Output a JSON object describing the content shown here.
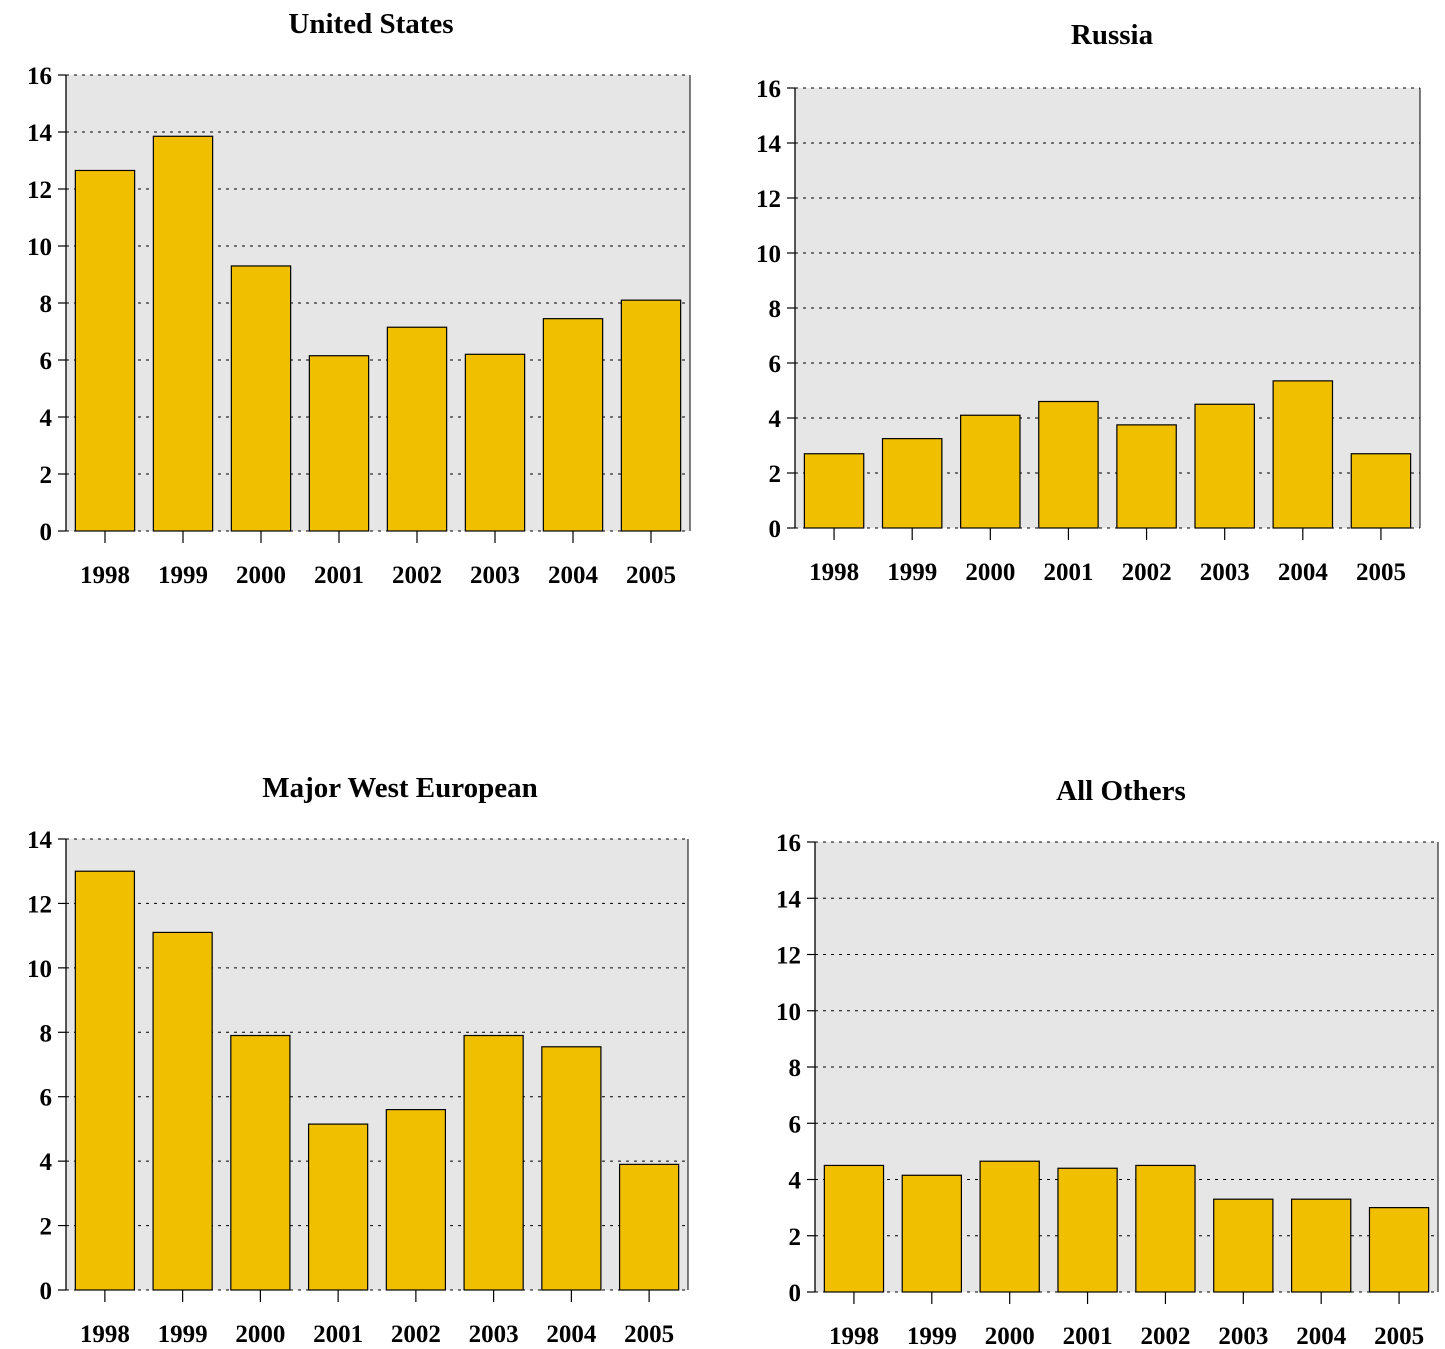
{
  "colors": {
    "bar": "#f0c000",
    "plot_background": "#e6e6e6"
  },
  "chart_data": [
    {
      "type": "bar",
      "title": "United States",
      "categories": [
        "1998",
        "1999",
        "2000",
        "2001",
        "2002",
        "2003",
        "2004",
        "2005"
      ],
      "values": [
        12.65,
        13.85,
        9.3,
        6.15,
        7.15,
        6.2,
        7.45,
        8.1
      ],
      "ylim": [
        0,
        16
      ],
      "yticks": [
        0,
        2,
        4,
        6,
        8,
        10,
        12,
        14,
        16
      ],
      "grid": true
    },
    {
      "type": "bar",
      "title": "Russia",
      "categories": [
        "1998",
        "1999",
        "2000",
        "2001",
        "2002",
        "2003",
        "2004",
        "2005"
      ],
      "values": [
        2.7,
        3.25,
        4.1,
        4.6,
        3.75,
        4.5,
        5.35,
        2.7
      ],
      "ylim": [
        0,
        16
      ],
      "yticks": [
        0,
        2,
        4,
        6,
        8,
        10,
        12,
        14,
        16
      ],
      "grid": true
    },
    {
      "type": "bar",
      "title": "Major West European",
      "categories": [
        "1998",
        "1999",
        "2000",
        "2001",
        "2002",
        "2003",
        "2004",
        "2005"
      ],
      "values": [
        13.0,
        11.1,
        7.9,
        5.15,
        5.6,
        7.9,
        7.55,
        3.9
      ],
      "ylim": [
        0,
        14
      ],
      "yticks": [
        0,
        2,
        4,
        6,
        8,
        10,
        12,
        14
      ],
      "grid": true
    },
    {
      "type": "bar",
      "title": "All Others",
      "categories": [
        "1998",
        "1999",
        "2000",
        "2001",
        "2002",
        "2003",
        "2004",
        "2005"
      ],
      "values": [
        4.5,
        4.15,
        4.65,
        4.4,
        4.5,
        3.3,
        3.3,
        3.0
      ],
      "ylim": [
        0,
        16
      ],
      "yticks": [
        0,
        2,
        4,
        6,
        8,
        10,
        12,
        14,
        16
      ],
      "grid": true
    }
  ]
}
